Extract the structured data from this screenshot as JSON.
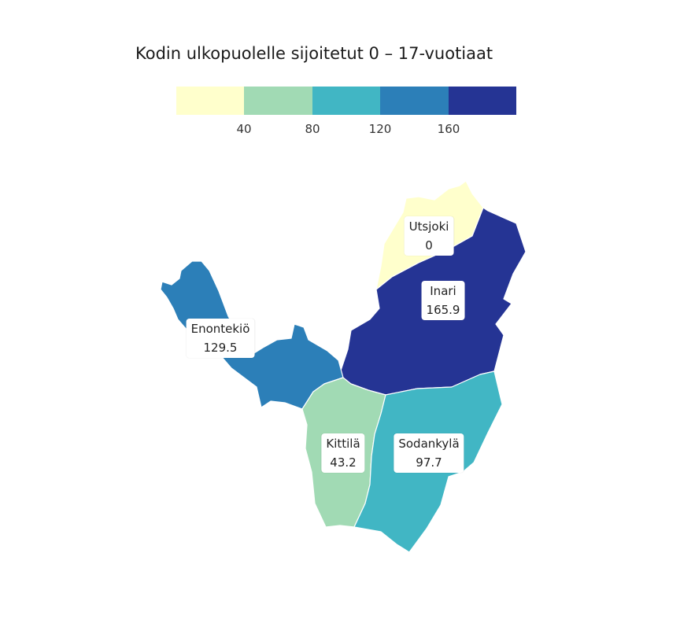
{
  "title": "Kodin ulkopuolelle sijoitetut 0 – 17-vuotiaat",
  "legend": {
    "colors": [
      "#ffffcc",
      "#a1dab4",
      "#41b6c4",
      "#2c7fb8",
      "#253494"
    ],
    "breaks": [
      "40",
      "80",
      "120",
      "160"
    ]
  },
  "regions": [
    {
      "name": "Utsjoki",
      "value": "0",
      "color": "#ffffcc"
    },
    {
      "name": "Inari",
      "value": "165.9",
      "color": "#253494"
    },
    {
      "name": "Enontekiö",
      "value": "129.5",
      "color": "#2c7fb8"
    },
    {
      "name": "Kittilä",
      "value": "43.2",
      "color": "#a1dab4"
    },
    {
      "name": "Sodankylä",
      "value": "97.7",
      "color": "#41b6c4"
    }
  ]
}
